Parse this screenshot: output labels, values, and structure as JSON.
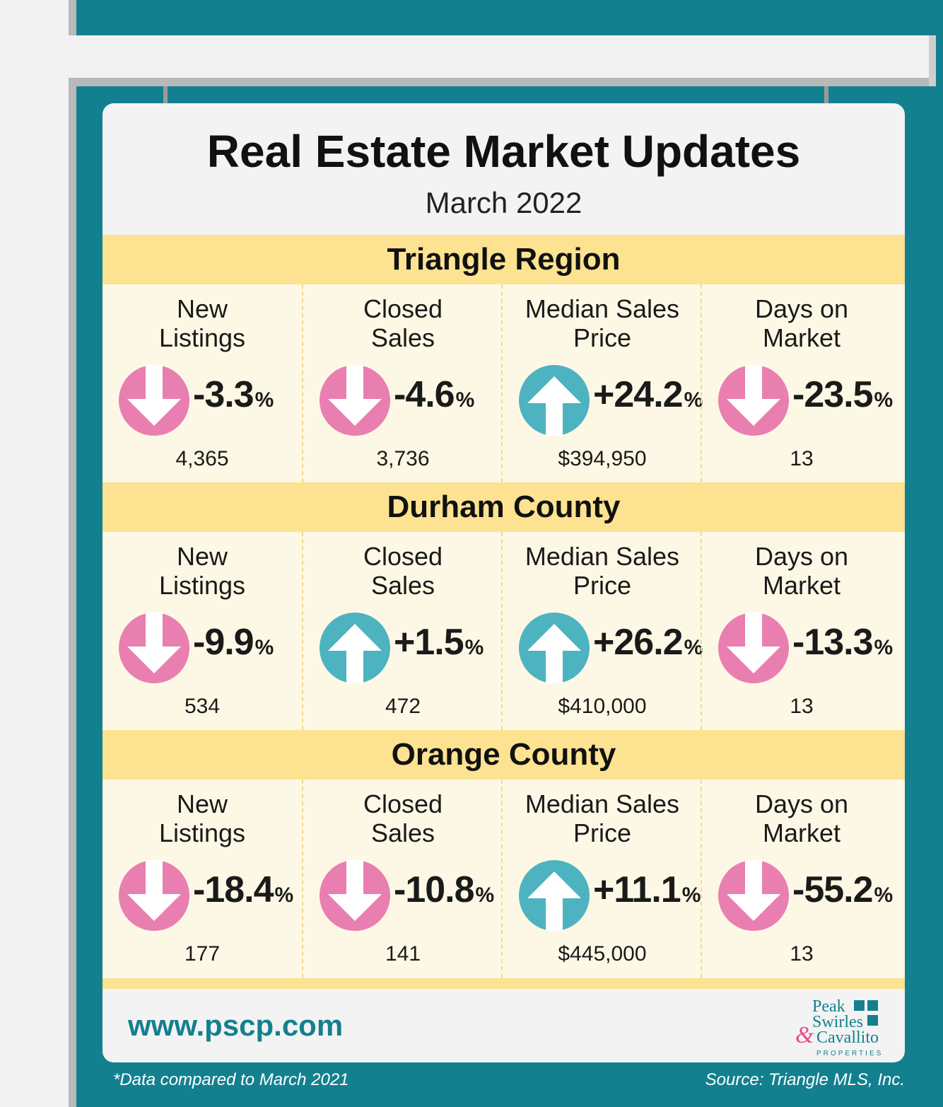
{
  "title": "Real Estate Market Updates",
  "subtitle": "March 2022",
  "colors": {
    "background": "#13808f",
    "section_header": "#fde391",
    "section_body": "#fdf8e5",
    "down_arrow": "#e97fb0",
    "up_arrow": "#4db3c0"
  },
  "sections": [
    {
      "name": "Triangle Region",
      "metrics": [
        {
          "label": "New Listings",
          "change": "-3.3",
          "value": "4,365",
          "direction": "down"
        },
        {
          "label": "Closed Sales",
          "change": "-4.6",
          "value": "3,736",
          "direction": "down"
        },
        {
          "label": "Median Sales Price",
          "change": "+24.2",
          "value": "$394,950",
          "direction": "up"
        },
        {
          "label": "Days on Market",
          "change": "-23.5",
          "value": "13",
          "direction": "down"
        }
      ]
    },
    {
      "name": "Durham County",
      "metrics": [
        {
          "label": "New Listings",
          "change": "-9.9",
          "value": "534",
          "direction": "down"
        },
        {
          "label": "Closed Sales",
          "change": "+1.5",
          "value": "472",
          "direction": "up"
        },
        {
          "label": "Median Sales Price",
          "change": "+26.2",
          "value": "$410,000",
          "direction": "up"
        },
        {
          "label": "Days on Market",
          "change": "-13.3",
          "value": "13",
          "direction": "down"
        }
      ]
    },
    {
      "name": "Orange County",
      "metrics": [
        {
          "label": "New Listings",
          "change": "-18.4",
          "value": "177",
          "direction": "down"
        },
        {
          "label": "Closed Sales",
          "change": "-10.8",
          "value": "141",
          "direction": "down"
        },
        {
          "label": "Median Sales Price",
          "change": "+11.1",
          "value": "$445,000",
          "direction": "up"
        },
        {
          "label": "Days on Market",
          "change": "-55.2",
          "value": "13",
          "direction": "down"
        }
      ]
    }
  ],
  "percent_sign": "%",
  "labels": {
    "new_listings": [
      "New",
      "Listings"
    ],
    "closed_sales": [
      "Closed",
      "Sales"
    ],
    "median_price": [
      "Median Sales",
      "Price"
    ],
    "days_on_market": [
      "Days on",
      "Market"
    ]
  },
  "website": "www.pscp.com",
  "logo": {
    "line1": "Peak",
    "line2": "Swirles",
    "ampersand": "&",
    "line3": "Cavallito",
    "line4": "PROPERTIES"
  },
  "footnote_left": "*Data compared to March 2021",
  "footnote_right": "Source: Triangle MLS, Inc."
}
